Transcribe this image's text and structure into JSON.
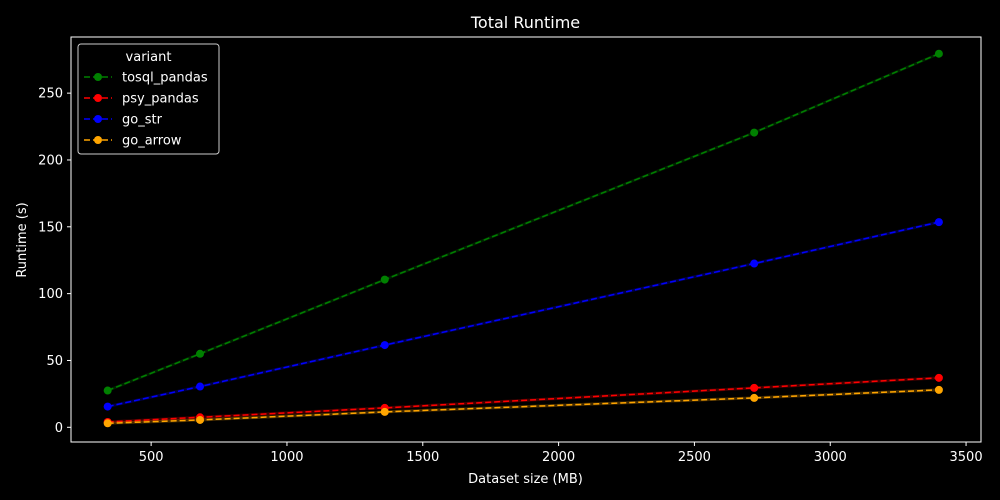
{
  "chart_data": {
    "type": "line",
    "title": "Total Runtime",
    "xlabel": "Dataset size (MB)",
    "ylabel": "Runtime (s)",
    "xlim": [
      205,
      3555
    ],
    "ylim": [
      -11,
      292
    ],
    "x_ticks": [
      500,
      1000,
      1500,
      2000,
      2500,
      3000,
      3500
    ],
    "y_ticks": [
      0,
      50,
      100,
      150,
      200,
      250
    ],
    "grid": false,
    "legend": {
      "title": "variant",
      "position": "top-left"
    },
    "x": [
      340,
      680,
      1360,
      2720,
      3400
    ],
    "series": [
      {
        "name": "tosql_pandas",
        "color": "#008000",
        "values": [
          27.5,
          55,
          110.5,
          220.5,
          279.5
        ],
        "linestyle": "dashed",
        "marker": "circle"
      },
      {
        "name": "psy_pandas",
        "color": "#ff0000",
        "values": [
          4,
          7.5,
          14.5,
          29.5,
          37
        ],
        "linestyle": "dashed",
        "marker": "circle"
      },
      {
        "name": "go_str",
        "color": "#0000ff",
        "values": [
          15.5,
          30.5,
          61.5,
          122.5,
          153.5
        ],
        "linestyle": "dashed",
        "marker": "circle"
      },
      {
        "name": "go_arrow",
        "color": "#ffa500",
        "values": [
          3,
          5.5,
          11.5,
          22,
          28
        ],
        "linestyle": "dashed",
        "marker": "circle"
      }
    ]
  }
}
